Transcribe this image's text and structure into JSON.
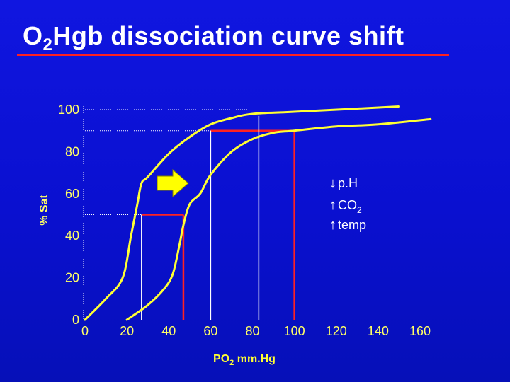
{
  "title": {
    "main": "O",
    "sub": "2",
    "rest": "Hgb dissociation curve shift"
  },
  "chart_data": {
    "type": "line",
    "xlabel_main": "PO",
    "xlabel_sub": "2",
    "xlabel_rest": " mm.Hg",
    "ylabel": "% Sat",
    "xlim": [
      0,
      160
    ],
    "ylim": [
      0,
      100
    ],
    "x_ticks": [
      "0",
      "20",
      "40",
      "60",
      "80",
      "100",
      "120",
      "140",
      "160"
    ],
    "y_ticks": [
      "0",
      "20",
      "40",
      "60",
      "80",
      "100"
    ],
    "series": [
      {
        "color": "#ffff33",
        "x": [
          0,
          10,
          18,
          22,
          25,
          27,
          30,
          40,
          50,
          60,
          70,
          80,
          100,
          150
        ],
        "y": [
          0,
          10,
          20,
          40,
          55,
          65,
          68,
          79,
          87,
          93,
          96,
          98,
          99,
          101.5
        ]
      },
      {
        "color": "#ffff33",
        "x": [
          20,
          30,
          38,
          42,
          45,
          47,
          50,
          55,
          60,
          70,
          80,
          90,
          100,
          120,
          140,
          165
        ],
        "y": [
          0,
          7,
          15,
          22,
          35,
          45,
          55,
          60,
          69,
          80,
          86,
          89,
          90,
          92,
          93,
          95.5
        ]
      }
    ],
    "reference_lines": [
      {
        "from": [
          0,
          100
        ],
        "to": [
          80,
          100
        ],
        "color": "#ffffff",
        "style": "dotted"
      },
      {
        "from": [
          0,
          90
        ],
        "to": [
          100,
          90
        ],
        "color": "#ffffff",
        "style": "dotted"
      },
      {
        "from": [
          0,
          50
        ],
        "to": [
          27,
          50
        ],
        "color": "#ffffff",
        "style": "dotted"
      },
      {
        "from": [
          27,
          50
        ],
        "to": [
          47,
          50
        ],
        "color": "#ff2222",
        "style": "solid"
      },
      {
        "from": [
          27,
          0
        ],
        "to": [
          27,
          50
        ],
        "color": "#ffffff",
        "style": "solid"
      },
      {
        "from": [
          47,
          0
        ],
        "to": [
          47,
          50
        ],
        "color": "#ff2222",
        "style": "solid"
      },
      {
        "from": [
          60,
          90
        ],
        "to": [
          100,
          90
        ],
        "color": "#ff2222",
        "style": "solid"
      },
      {
        "from": [
          60,
          0
        ],
        "to": [
          60,
          90
        ],
        "color": "#ffffff",
        "style": "solid"
      },
      {
        "from": [
          100,
          0
        ],
        "to": [
          100,
          90
        ],
        "color": "#ff2222",
        "style": "solid"
      },
      {
        "from": [
          83,
          0
        ],
        "to": [
          83,
          97
        ],
        "color": "#ffffff",
        "style": "solid"
      }
    ],
    "annotations": [
      {
        "arrow": "↓",
        "text": "p.H",
        "sub": ""
      },
      {
        "arrow": "↑",
        "text": "CO",
        "sub": "2"
      },
      {
        "arrow": "↑",
        "text": "temp",
        "sub": ""
      }
    ],
    "arrow_color": "#ffff00",
    "grid": false
  }
}
